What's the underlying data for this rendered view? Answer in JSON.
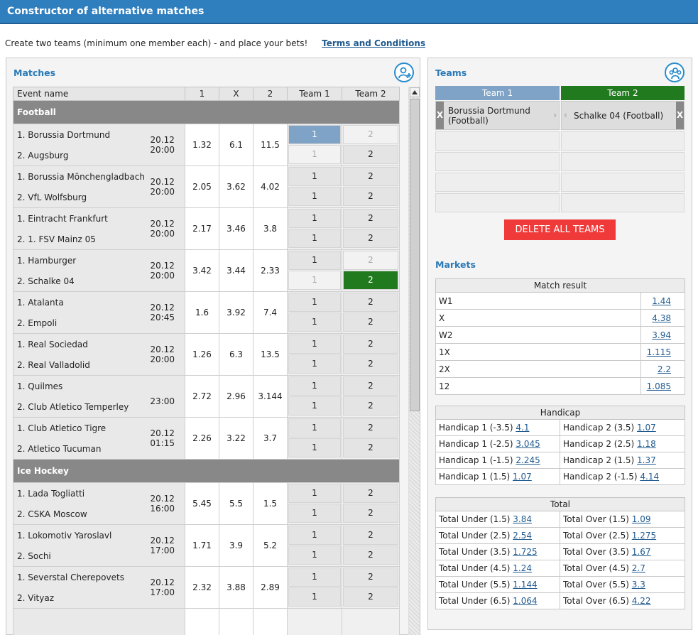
{
  "header": {
    "title": "Constructor of alternative matches"
  },
  "intro": {
    "text": "Create two teams (minimum one member each) - and place your bets!",
    "terms_link": "Terms and Conditions"
  },
  "matches_panel": {
    "title": "Matches",
    "columns": [
      "Event name",
      "1",
      "X",
      "2",
      "Team 1",
      "Team 2"
    ],
    "sports": [
      {
        "name": "Football",
        "events": [
          {
            "team1": "1. Borussia Dortmund",
            "team2": "2. Augsburg",
            "date": "20.12",
            "time": "20:00",
            "o1": "1.32",
            "ox": "6.1",
            "o2": "11.5",
            "state": "t1_home"
          },
          {
            "team1": "1. Borussia Mönchengladbach",
            "team2": "2. VfL Wolfsburg",
            "date": "20.12",
            "time": "20:00",
            "o1": "2.05",
            "ox": "3.62",
            "o2": "4.02",
            "state": ""
          },
          {
            "team1": "1. Eintracht Frankfurt",
            "team2": "2. 1. FSV Mainz 05",
            "date": "20.12",
            "time": "20:00",
            "o1": "2.17",
            "ox": "3.46",
            "o2": "3.8",
            "state": ""
          },
          {
            "team1": "1. Hamburger",
            "team2": "2. Schalke 04",
            "date": "20.12",
            "time": "20:00",
            "o1": "3.42",
            "ox": "3.44",
            "o2": "2.33",
            "state": "t2_away"
          },
          {
            "team1": "1. Atalanta",
            "team2": "2. Empoli",
            "date": "20.12",
            "time": "20:45",
            "o1": "1.6",
            "ox": "3.92",
            "o2": "7.4",
            "state": ""
          },
          {
            "team1": "1. Real Sociedad",
            "team2": "2. Real Valladolid",
            "date": "20.12",
            "time": "20:00",
            "o1": "1.26",
            "ox": "6.3",
            "o2": "13.5",
            "state": ""
          },
          {
            "team1": "1. Quilmes",
            "team2": "2. Club Atletico Temperley",
            "date": "",
            "time": "23:00",
            "o1": "2.72",
            "ox": "2.96",
            "o2": "3.144",
            "state": ""
          },
          {
            "team1": "1. Club Atletico Tigre",
            "team2": "2. Atletico Tucuman",
            "date": "20.12",
            "time": "01:15",
            "o1": "2.26",
            "ox": "3.22",
            "o2": "3.7",
            "state": ""
          }
        ]
      },
      {
        "name": "Ice Hockey",
        "events": [
          {
            "team1": "1. Lada Togliatti",
            "team2": "2. CSKA Moscow",
            "date": "20.12",
            "time": "16:00",
            "o1": "5.45",
            "ox": "5.5",
            "o2": "1.5",
            "state": ""
          },
          {
            "team1": "1. Lokomotiv Yaroslavl",
            "team2": "2. Sochi",
            "date": "20.12",
            "time": "17:00",
            "o1": "1.71",
            "ox": "3.9",
            "o2": "5.2",
            "state": ""
          },
          {
            "team1": "1. Severstal Cherepovets",
            "team2": "2. Vityaz",
            "date": "20.12",
            "time": "17:00",
            "o1": "2.32",
            "ox": "3.88",
            "o2": "2.89",
            "state": ""
          }
        ]
      }
    ],
    "btn1": "1",
    "btn2": "2"
  },
  "teams_panel": {
    "title": "Teams",
    "team1_label": "Team 1",
    "team2_label": "Team 2",
    "team1_color": "#7fa3c7",
    "team2_color": "#217a1d",
    "team1_member": "Borussia Dortmund (Football)",
    "team2_member": "Schalke 04 (Football)",
    "remove_glyph": "X",
    "delete_label": "DELETE ALL TEAMS"
  },
  "markets": {
    "title": "Markets",
    "match_result": {
      "title": "Match result",
      "rows": [
        {
          "label": "W1",
          "value": "1.44"
        },
        {
          "label": "X",
          "value": "4.38"
        },
        {
          "label": "W2",
          "value": "3.94"
        },
        {
          "label": "1X",
          "value": "1.115"
        },
        {
          "label": "2X",
          "value": "2.2"
        },
        {
          "label": "12",
          "value": "1.085"
        }
      ]
    },
    "handicap": {
      "title": "Handicap",
      "rows": [
        {
          "l1": "Handicap 1 (-3.5)",
          "v1": "4.1",
          "l2": "Handicap 2 (3.5)",
          "v2": "1.07"
        },
        {
          "l1": "Handicap 1 (-2.5)",
          "v1": "3.045",
          "l2": "Handicap 2 (2.5)",
          "v2": "1.18"
        },
        {
          "l1": "Handicap 1 (-1.5)",
          "v1": "2.245",
          "l2": "Handicap 2 (1.5)",
          "v2": "1.37"
        },
        {
          "l1": "Handicap 1 (1.5)",
          "v1": "1.07",
          "l2": "Handicap 2 (-1.5)",
          "v2": "4.14"
        }
      ]
    },
    "total": {
      "title": "Total",
      "rows": [
        {
          "l1": "Total Under (1.5)",
          "v1": "3.84",
          "l2": "Total Over (1.5)",
          "v2": "1.09"
        },
        {
          "l1": "Total Under (2.5)",
          "v1": "2.54",
          "l2": "Total Over (2.5)",
          "v2": "1.275"
        },
        {
          "l1": "Total Under (3.5)",
          "v1": "1.725",
          "l2": "Total Over (3.5)",
          "v2": "1.67"
        },
        {
          "l1": "Total Under (4.5)",
          "v1": "1.24",
          "l2": "Total Over (4.5)",
          "v2": "2.7"
        },
        {
          "l1": "Total Under (5.5)",
          "v1": "1.144",
          "l2": "Total Over (5.5)",
          "v2": "3.3"
        },
        {
          "l1": "Total Under (6.5)",
          "v1": "1.064",
          "l2": "Total Over (6.5)",
          "v2": "4.22"
        }
      ]
    }
  }
}
